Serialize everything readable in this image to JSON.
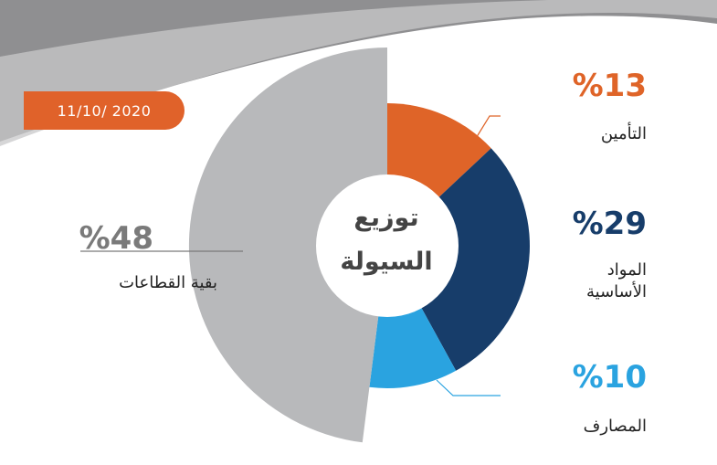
{
  "date": "11/10/ 2020",
  "colors": {
    "insurance": "#df6428",
    "materials": "#173d6a",
    "banks": "#2aa3e0",
    "others": "#b8b9bb",
    "label_gray": "#7a7a7a"
  },
  "chart_data": {
    "type": "pie",
    "title": "توزيع السيولة",
    "title_lines": [
      "توزيع",
      "السيولة"
    ],
    "slices": [
      {
        "label": "التأمين",
        "value": 13,
        "value_label": "%13",
        "color": "#df6428"
      },
      {
        "label": "المواد الأساسية",
        "label_lines": [
          "المواد",
          "الأساسية"
        ],
        "value": 29,
        "value_label": "%29",
        "color": "#173d6a"
      },
      {
        "label": "المصارف",
        "value": 10,
        "value_label": "%10",
        "color": "#2aa3e0"
      },
      {
        "label": "بقية القطاعات",
        "value": 48,
        "value_label": "%48",
        "color": "#b8b9bb"
      }
    ]
  }
}
